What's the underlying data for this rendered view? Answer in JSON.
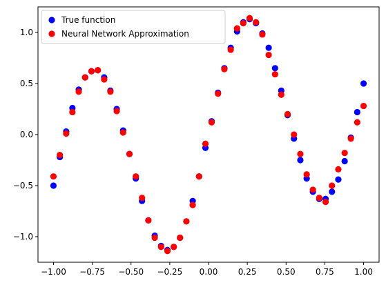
{
  "chart_data": {
    "type": "scatter",
    "title": "",
    "xlabel": "",
    "ylabel": "",
    "xlim": [
      -1.1,
      1.1
    ],
    "ylim": [
      -1.25,
      1.25
    ],
    "xticks": [
      -1.0,
      -0.75,
      -0.5,
      -0.25,
      0.0,
      0.25,
      0.5,
      0.75,
      1.0
    ],
    "xtick_labels": [
      "−1.00",
      "−0.75",
      "−0.50",
      "−0.25",
      "0.00",
      "0.25",
      "0.50",
      "0.75",
      "1.00"
    ],
    "yticks": [
      -1.0,
      -0.5,
      0.0,
      0.5,
      1.0
    ],
    "ytick_labels": [
      "−1.0",
      "−0.5",
      "0.0",
      "0.5",
      "1.0"
    ],
    "grid": false,
    "legend": "top-left",
    "x": [
      -1.0,
      -0.959,
      -0.918,
      -0.878,
      -0.837,
      -0.796,
      -0.755,
      -0.714,
      -0.673,
      -0.633,
      -0.592,
      -0.551,
      -0.51,
      -0.469,
      -0.429,
      -0.388,
      -0.347,
      -0.306,
      -0.265,
      -0.224,
      -0.184,
      -0.143,
      -0.102,
      -0.061,
      -0.02,
      0.02,
      0.061,
      0.102,
      0.143,
      0.184,
      0.224,
      0.265,
      0.306,
      0.347,
      0.388,
      0.429,
      0.469,
      0.51,
      0.551,
      0.592,
      0.633,
      0.673,
      0.714,
      0.755,
      0.796,
      0.837,
      0.878,
      0.918,
      0.959,
      1.0
    ],
    "series": [
      {
        "name": "True function",
        "color": "#0000ff",
        "values": [
          -0.5,
          -0.22,
          0.03,
          0.26,
          0.44,
          0.56,
          0.62,
          0.63,
          0.56,
          0.43,
          0.25,
          0.04,
          -0.19,
          -0.43,
          -0.65,
          -0.84,
          -0.99,
          -1.09,
          -1.13,
          -1.1,
          -1.01,
          -0.85,
          -0.65,
          -0.41,
          -0.13,
          0.13,
          0.41,
          0.65,
          0.85,
          1.01,
          1.1,
          1.13,
          1.09,
          0.99,
          0.85,
          0.65,
          0.43,
          0.19,
          -0.04,
          -0.25,
          -0.43,
          -0.56,
          -0.63,
          -0.63,
          -0.56,
          -0.44,
          -0.26,
          -0.03,
          0.22,
          0.5
        ]
      },
      {
        "name": "Neural Network Approximation",
        "color": "#ff0000",
        "values": [
          -0.41,
          -0.2,
          0.01,
          0.22,
          0.42,
          0.56,
          0.62,
          0.63,
          0.54,
          0.42,
          0.23,
          0.02,
          -0.19,
          -0.41,
          -0.62,
          -0.84,
          -1.01,
          -1.1,
          -1.14,
          -1.1,
          -1.01,
          -0.85,
          -0.69,
          -0.41,
          -0.09,
          0.12,
          0.4,
          0.64,
          0.83,
          1.04,
          1.09,
          1.14,
          1.1,
          0.98,
          0.78,
          0.59,
          0.39,
          0.2,
          0.0,
          -0.19,
          -0.39,
          -0.54,
          -0.62,
          -0.66,
          -0.5,
          -0.34,
          -0.18,
          -0.04,
          0.12,
          0.28
        ]
      }
    ]
  }
}
